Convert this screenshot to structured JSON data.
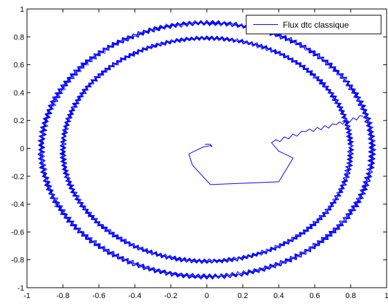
{
  "chart_data": {
    "type": "line",
    "title": "",
    "xlabel": "",
    "ylabel": "",
    "xlim": [
      -1,
      1
    ],
    "ylim": [
      -1,
      1
    ],
    "xticks": [
      -1,
      -0.8,
      -0.6,
      -0.4,
      -0.2,
      0,
      0.2,
      0.4,
      0.6,
      0.8,
      1
    ],
    "yticks": [
      -1,
      -0.8,
      -0.6,
      -0.4,
      -0.2,
      0,
      0.2,
      0.4,
      0.6,
      0.8,
      1
    ],
    "xtick_labels": [
      "-1",
      "-0.8",
      "-0.6",
      "-0.4",
      "-0.2",
      "0",
      "0.2",
      "0.4",
      "0.6",
      "0.8",
      "1"
    ],
    "ytick_labels": [
      "-1",
      "-0.8",
      "-0.6",
      "-0.4",
      "-0.2",
      "0",
      "0.2",
      "0.4",
      "0.6",
      "0.8",
      "1"
    ],
    "grid": false,
    "legend_position": "top-right",
    "series": [
      {
        "name": "Flux dtc classique",
        "color": "#0000ff",
        "transient_points": [
          [
            -0.01,
            0.03
          ],
          [
            0.02,
            0.03
          ],
          [
            0.03,
            0.01
          ],
          [
            0.02,
            0.02
          ],
          [
            -0.02,
            0.01
          ],
          [
            -0.1,
            -0.04
          ],
          [
            -0.08,
            -0.12
          ],
          [
            0.02,
            -0.26
          ],
          [
            0.4,
            -0.24
          ],
          [
            0.48,
            -0.07
          ],
          [
            0.4,
            -0.02
          ],
          [
            0.36,
            0.04
          ],
          [
            0.55,
            0.12
          ],
          [
            0.72,
            0.17
          ],
          [
            0.87,
            0.23
          ]
        ],
        "outer_loop": {
          "x_radius": 0.92,
          "y_radius": 0.91,
          "band": 0.05
        },
        "inner_loop": {
          "x_radius": 0.8,
          "y_radius": 0.8,
          "band": 0.05
        }
      }
    ]
  }
}
